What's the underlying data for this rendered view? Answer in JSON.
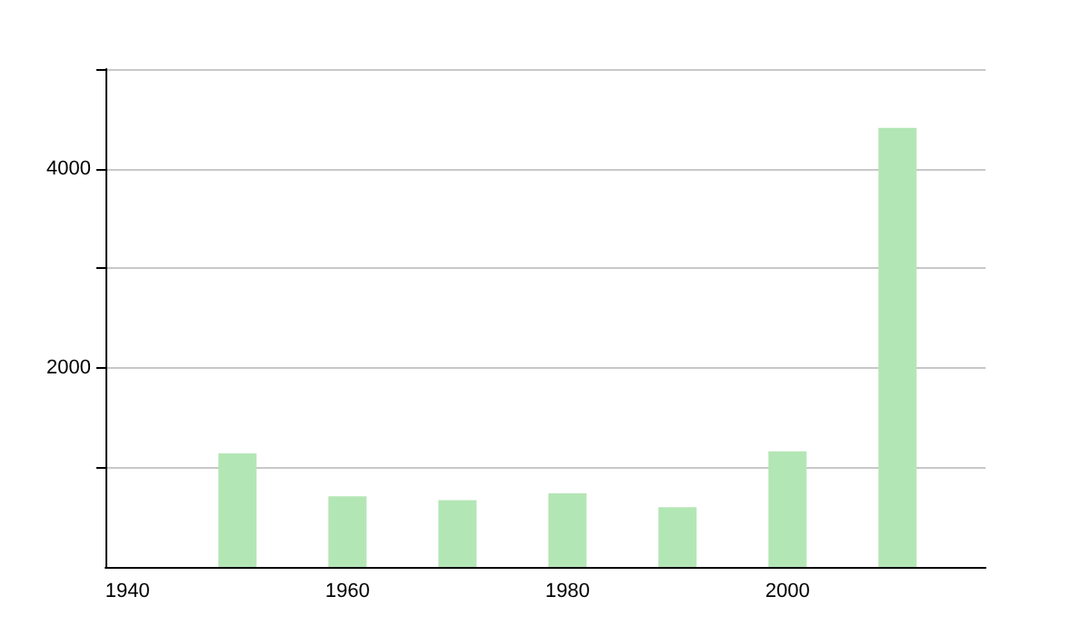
{
  "chart_data": {
    "type": "bar",
    "x": [
      1950,
      1960,
      1970,
      1980,
      1990,
      2000,
      2010
    ],
    "values": [
      1140,
      710,
      670,
      740,
      600,
      1160,
      4410
    ],
    "color": "#b3e6b5",
    "xlim": [
      1938,
      2018
    ],
    "xticks": [
      1940,
      1960,
      1980,
      2000
    ],
    "ylim": [
      0,
      5000
    ],
    "yticks": [
      {
        "value": 1000,
        "label": null
      },
      2000,
      {
        "value": 3000,
        "label": null
      },
      4000,
      {
        "value": 5000,
        "label": null
      }
    ],
    "grid": "y"
  }
}
